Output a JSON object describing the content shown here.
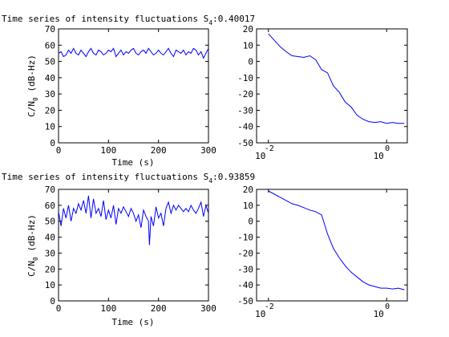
{
  "figure": {
    "colors": {
      "line": "#0000ff",
      "axes": "#000000",
      "background": "#ffffff"
    }
  },
  "chart_data": [
    {
      "type": "line",
      "title": "Time series of intensity fluctuations S",
      "title_subscript": "4",
      "title_value": ":0.40017",
      "xlabel": "Time (s)",
      "ylabel": "C/N",
      "ylabel_subscript": "0",
      "ylabel_units": " (dB-Hz)",
      "xlim": [
        0,
        300
      ],
      "ylim": [
        0,
        70
      ],
      "xticks": [
        "0",
        "100",
        "200",
        "300"
      ],
      "yticks": [
        "0",
        "10",
        "20",
        "30",
        "40",
        "50",
        "60",
        "70"
      ],
      "grid": false,
      "x_scale": "linear",
      "series": [
        {
          "x": [
            0,
            5,
            10,
            15,
            20,
            25,
            30,
            35,
            40,
            45,
            50,
            55,
            60,
            65,
            70,
            75,
            80,
            85,
            90,
            95,
            100,
            105,
            110,
            115,
            120,
            125,
            130,
            135,
            140,
            145,
            150,
            155,
            160,
            165,
            170,
            175,
            180,
            185,
            190,
            195,
            200,
            205,
            210,
            215,
            220,
            225,
            230,
            235,
            240,
            245,
            250,
            255,
            260,
            265,
            270,
            275,
            280,
            285,
            290,
            295,
            300
          ],
          "y": [
            55,
            56,
            53,
            54,
            57,
            55,
            58,
            55,
            54,
            57,
            55,
            53,
            56,
            58,
            55,
            54,
            57,
            56,
            54,
            55,
            57,
            56,
            58,
            53,
            55,
            57,
            54,
            56,
            55,
            57,
            58,
            55,
            54,
            56,
            57,
            55,
            58,
            56,
            54,
            55,
            57,
            55,
            54,
            56,
            58,
            55,
            53,
            57,
            56,
            55,
            57,
            54,
            56,
            55,
            58,
            57,
            54,
            56,
            52,
            55,
            58
          ]
        }
      ]
    },
    {
      "type": "line",
      "xlabel": "",
      "ylabel": "",
      "x_scale": "log",
      "xlim": [
        -2.2,
        0.35
      ],
      "ylim": [
        -50,
        20
      ],
      "xticks": [
        {
          "base": "10",
          "exp": "-2"
        },
        {
          "base": "10",
          "exp": "0"
        }
      ],
      "yticks": [
        "-50",
        "-40",
        "-30",
        "-20",
        "-10",
        "0",
        "10",
        "20"
      ],
      "grid": false,
      "series": [
        {
          "x": [
            -2,
            -1.9,
            -1.8,
            -1.7,
            -1.6,
            -1.5,
            -1.4,
            -1.3,
            -1.2,
            -1.1,
            -1,
            -0.9,
            -0.8,
            -0.7,
            -0.6,
            -0.5,
            -0.4,
            -0.3,
            -0.2,
            -0.1,
            0,
            0.1,
            0.2,
            0.3
          ],
          "y": [
            17,
            13,
            9,
            6,
            3.5,
            3,
            2.5,
            3.5,
            1,
            -5,
            -7,
            -15,
            -19,
            -25,
            -28,
            -33,
            -35.5,
            -37,
            -37.5,
            -37,
            -38,
            -37.5,
            -38,
            -38
          ]
        }
      ]
    },
    {
      "type": "line",
      "title": "Time series of intensity fluctuations S",
      "title_subscript": "4",
      "title_value": ":0.93859",
      "xlabel": "Time (s)",
      "ylabel": "C/N",
      "ylabel_subscript": "0",
      "ylabel_units": " (dB-Hz)",
      "xlim": [
        0,
        300
      ],
      "ylim": [
        0,
        70
      ],
      "xticks": [
        "0",
        "100",
        "200",
        "300"
      ],
      "yticks": [
        "0",
        "10",
        "20",
        "30",
        "40",
        "50",
        "60",
        "70"
      ],
      "grid": false,
      "x_scale": "linear",
      "series": [
        {
          "x": [
            0,
            5,
            10,
            15,
            20,
            25,
            30,
            35,
            40,
            45,
            50,
            55,
            60,
            65,
            70,
            75,
            80,
            85,
            90,
            95,
            100,
            105,
            110,
            115,
            120,
            125,
            130,
            135,
            140,
            145,
            150,
            155,
            160,
            165,
            170,
            175,
            180,
            182,
            185,
            190,
            195,
            200,
            205,
            210,
            215,
            220,
            225,
            230,
            235,
            240,
            245,
            250,
            255,
            260,
            265,
            270,
            275,
            280,
            285,
            290,
            295,
            300
          ],
          "y": [
            56,
            47,
            58,
            52,
            60,
            50,
            58,
            55,
            61,
            57,
            63,
            55,
            66,
            52,
            64,
            55,
            58,
            53,
            63,
            51,
            57,
            52,
            60,
            48,
            58,
            55,
            59,
            56,
            53,
            58,
            55,
            50,
            54,
            46,
            57,
            53,
            50,
            35,
            53,
            47,
            59,
            52,
            55,
            47,
            58,
            62,
            55,
            60,
            57,
            60,
            58,
            56,
            58,
            56,
            60,
            57,
            55,
            58,
            62,
            53,
            60,
            55
          ]
        }
      ]
    },
    {
      "type": "line",
      "xlabel": "",
      "ylabel": "",
      "x_scale": "log",
      "xlim": [
        -2.2,
        0.35
      ],
      "ylim": [
        -50,
        20
      ],
      "xticks": [
        {
          "base": "10",
          "exp": "-2"
        },
        {
          "base": "10",
          "exp": "0"
        }
      ],
      "yticks": [
        "-50",
        "-40",
        "-30",
        "-20",
        "-10",
        "0",
        "10",
        "20"
      ],
      "grid": false,
      "series": [
        {
          "x": [
            -2,
            -1.9,
            -1.8,
            -1.7,
            -1.6,
            -1.5,
            -1.4,
            -1.3,
            -1.2,
            -1.1,
            -1,
            -0.9,
            -0.8,
            -0.7,
            -0.6,
            -0.5,
            -0.4,
            -0.3,
            -0.2,
            -0.1,
            0,
            0.1,
            0.2,
            0.3
          ],
          "y": [
            19,
            17,
            15,
            13,
            11,
            10,
            8.5,
            7,
            6,
            4,
            -8,
            -17,
            -23,
            -28,
            -32,
            -35,
            -38,
            -40,
            -41,
            -42,
            -42,
            -42.5,
            -42,
            -43
          ]
        }
      ]
    }
  ]
}
